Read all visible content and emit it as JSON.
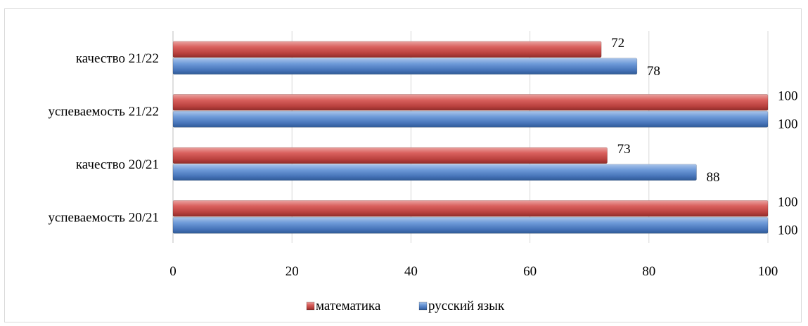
{
  "chart_data": {
    "type": "bar",
    "orientation": "horizontal",
    "categories": [
      "успеваемость 20/21",
      "качество 20/21",
      "успеваемость 21/22",
      "качество 21/22"
    ],
    "series": [
      {
        "name": "русский язык",
        "values": [
          100,
          88,
          100,
          78
        ],
        "color": "#4f81bd"
      },
      {
        "name": "математика",
        "values": [
          100,
          73,
          100,
          72
        ],
        "color": "#c0504d"
      }
    ],
    "xlim": [
      0,
      100
    ],
    "xticks": [
      "0",
      "20",
      "40",
      "60",
      "80",
      "100"
    ],
    "grid": true,
    "legend_position": "bottom",
    "legend_order": [
      "математика",
      "русский язык"
    ],
    "data_labels": true
  }
}
